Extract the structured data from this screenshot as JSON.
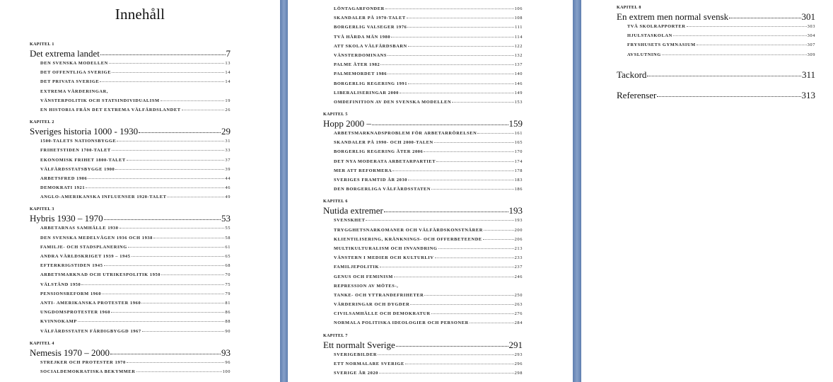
{
  "document": {
    "title": "Innehåll",
    "pages": [
      {
        "items": [
          {
            "type": "kap",
            "text": "Kapitel 1"
          },
          {
            "type": "head",
            "text": "Det extrema landet",
            "page": "7"
          },
          {
            "type": "ent",
            "text": "Den svenska modellen",
            "page": "13"
          },
          {
            "type": "ent",
            "text": "Det offentliga Sverige",
            "page": "14"
          },
          {
            "type": "ent",
            "text": "Det privata Sverige",
            "page": "14"
          },
          {
            "type": "line",
            "text": "Extrema värderingar,"
          },
          {
            "type": "ent",
            "text": "vänsterpolitik och statsindividualism",
            "page": "19"
          },
          {
            "type": "ent",
            "text": "En historia från det extrema välfärdslandet",
            "page": "26"
          },
          {
            "type": "kap",
            "text": "Kapitel 2"
          },
          {
            "type": "head",
            "text": "Sveriges historia 1000 - 1930",
            "page": "29"
          },
          {
            "type": "ent",
            "text": "1500-talets nationsbygge",
            "page": "31"
          },
          {
            "type": "ent",
            "text": "Frihetstiden 1700-talet",
            "page": "33"
          },
          {
            "type": "ent",
            "text": "Ekonomisk frihet 1800-talet",
            "page": "37"
          },
          {
            "type": "ent",
            "text": "Välfärdsstatsbygge 1900",
            "page": "39"
          },
          {
            "type": "ent",
            "text": "Arbetsfred 1906",
            "page": "44"
          },
          {
            "type": "ent",
            "text": "Demokrati 1921",
            "page": "46"
          },
          {
            "type": "ent",
            "text": "Anglo-amerikanska influenser 1920-talet",
            "page": "49"
          },
          {
            "type": "kap",
            "text": "Kapitel 3"
          },
          {
            "type": "head",
            "text": "Hybris 1930 – 1970",
            "page": "53"
          },
          {
            "type": "ent",
            "text": "Arbetarnas samhälle 1930",
            "page": "55"
          },
          {
            "type": "ent",
            "text": "Den svenska medelvägen 1936 och 1938",
            "page": "58"
          },
          {
            "type": "ent",
            "text": "Familje- och stadsplanering",
            "page": "61"
          },
          {
            "type": "ent",
            "text": "Andra världskriget 1939 – 1945",
            "page": "65"
          },
          {
            "type": "ent",
            "text": "Efterkrigstiden 1945",
            "page": "68"
          },
          {
            "type": "ent",
            "text": "Arbetsmarknad och utrikespolitik 1950",
            "page": "70"
          },
          {
            "type": "ent",
            "text": "Välstånd 1950",
            "page": "75"
          },
          {
            "type": "ent",
            "text": "Pensionsreform 1960",
            "page": "79"
          },
          {
            "type": "ent",
            "text": "Anti- amerikanska protester 1960",
            "page": "81"
          },
          {
            "type": "ent",
            "text": "Ungdomsprotester 1960",
            "page": "86"
          },
          {
            "type": "ent",
            "text": "Kvinnokamp",
            "page": "88"
          },
          {
            "type": "ent",
            "text": "Välfärdsstaten färdigbyggd 1967",
            "page": "90"
          },
          {
            "type": "kap",
            "text": "Kapitel 4"
          },
          {
            "type": "head",
            "text": "Nemesis 1970 – 2000",
            "page": "93"
          },
          {
            "type": "ent",
            "text": "Strejker och protester 1970",
            "page": "96"
          },
          {
            "type": "ent",
            "text": "Socialdemokratiska bekymmer",
            "page": "100"
          }
        ]
      },
      {
        "items": [
          {
            "type": "ent",
            "text": "Löntagarfonder",
            "page": "106"
          },
          {
            "type": "ent",
            "text": "Skandaler på 1970-talet",
            "page": "108"
          },
          {
            "type": "ent",
            "text": "Borgerlig valseger 1976",
            "page": "111"
          },
          {
            "type": "ent",
            "text": "Två hårda män 1980",
            "page": "114"
          },
          {
            "type": "ent",
            "text": "Att skola välfärdsbarn",
            "page": "122"
          },
          {
            "type": "ent",
            "text": "Vänsterdominans",
            "page": "132"
          },
          {
            "type": "ent",
            "text": "Palme åter 1982",
            "page": "137"
          },
          {
            "type": "ent",
            "text": "Palmemordet 1986",
            "page": "140"
          },
          {
            "type": "ent",
            "text": "Borgerlig regering 1991",
            "page": "146"
          },
          {
            "type": "ent",
            "text": "Liberaliseringar 2000",
            "page": "149"
          },
          {
            "type": "ent",
            "text": "Omdefinition av den svenska modellen",
            "page": "153"
          },
          {
            "type": "kap",
            "text": "Kapitel 5"
          },
          {
            "type": "head",
            "text": "Hopp 2000 –",
            "page": "159"
          },
          {
            "type": "ent",
            "text": "Arbetsmarknadsproblem för arbetarrörelsen",
            "page": "161"
          },
          {
            "type": "ent",
            "text": "Skandaler på 1990- och 2000-talen",
            "page": "165"
          },
          {
            "type": "ent",
            "text": "Borgerlig regering åter 2006",
            "page": "170"
          },
          {
            "type": "ent",
            "text": "Det nya moderata arbetarpartiet",
            "page": "174"
          },
          {
            "type": "ent",
            "text": "Mer att reformera",
            "page": "178"
          },
          {
            "type": "ent",
            "text": "Sveriges framtid år 2030",
            "page": "183"
          },
          {
            "type": "ent",
            "text": "Den borgerliga välfärdsstaten",
            "page": "186"
          },
          {
            "type": "kap",
            "text": "Kapitel 6"
          },
          {
            "type": "head",
            "text": "Nutida extremer",
            "page": "193"
          },
          {
            "type": "ent",
            "text": "Svenskhet",
            "page": "193"
          },
          {
            "type": "ent",
            "text": "Trygghetsnarkomaner och välfärdskonstnärer",
            "page": "200"
          },
          {
            "type": "ent",
            "text": "Klientilisering, kränknings- och offerbeteende",
            "page": "206"
          },
          {
            "type": "ent",
            "text": "Multikulturalism och invandring",
            "page": "213"
          },
          {
            "type": "ent",
            "text": "Vänstern i medier och kulturliv",
            "page": "233"
          },
          {
            "type": "ent",
            "text": "Familjepolitik",
            "page": "237"
          },
          {
            "type": "ent",
            "text": "Genus och feminism",
            "page": "246"
          },
          {
            "type": "line",
            "text": "Repression av mötes-,"
          },
          {
            "type": "ent",
            "text": "tanke- och yttrandefriheter",
            "page": "250"
          },
          {
            "type": "ent",
            "text": "Värderingar och dygder",
            "page": "263"
          },
          {
            "type": "ent",
            "text": "Civilsamhälle och demokratur",
            "page": "276"
          },
          {
            "type": "ent",
            "text": "Normala politiska ideologier och personer",
            "page": "284"
          },
          {
            "type": "kap",
            "text": "Kapitel 7"
          },
          {
            "type": "head",
            "text": "Ett normalt Sverige",
            "page": "291"
          },
          {
            "type": "ent",
            "text": "Sverigebilder",
            "page": "293"
          },
          {
            "type": "ent",
            "text": "Ett normalare Sverige",
            "page": "296"
          },
          {
            "type": "ent",
            "text": "Sverige år 2020",
            "page": "298"
          }
        ]
      },
      {
        "items": [
          {
            "type": "kap",
            "text": "Kapitel 8"
          },
          {
            "type": "head",
            "text": "En extrem men normal svensk",
            "page": "301"
          },
          {
            "type": "ent",
            "text": "Två skolrapporter",
            "page": "303"
          },
          {
            "type": "ent",
            "text": "Hjulstaskolan",
            "page": "304"
          },
          {
            "type": "ent",
            "text": "Fryshusets gymnasium",
            "page": "307"
          },
          {
            "type": "ent",
            "text": "Avslutning",
            "page": "309"
          },
          {
            "type": "solo",
            "text": "Tackord",
            "page": "311"
          },
          {
            "type": "solo",
            "text": "Referenser",
            "page": "313"
          }
        ]
      }
    ]
  },
  "colors": {
    "page_background": "#ffffff",
    "viewer_background": "#6f8cb8"
  }
}
